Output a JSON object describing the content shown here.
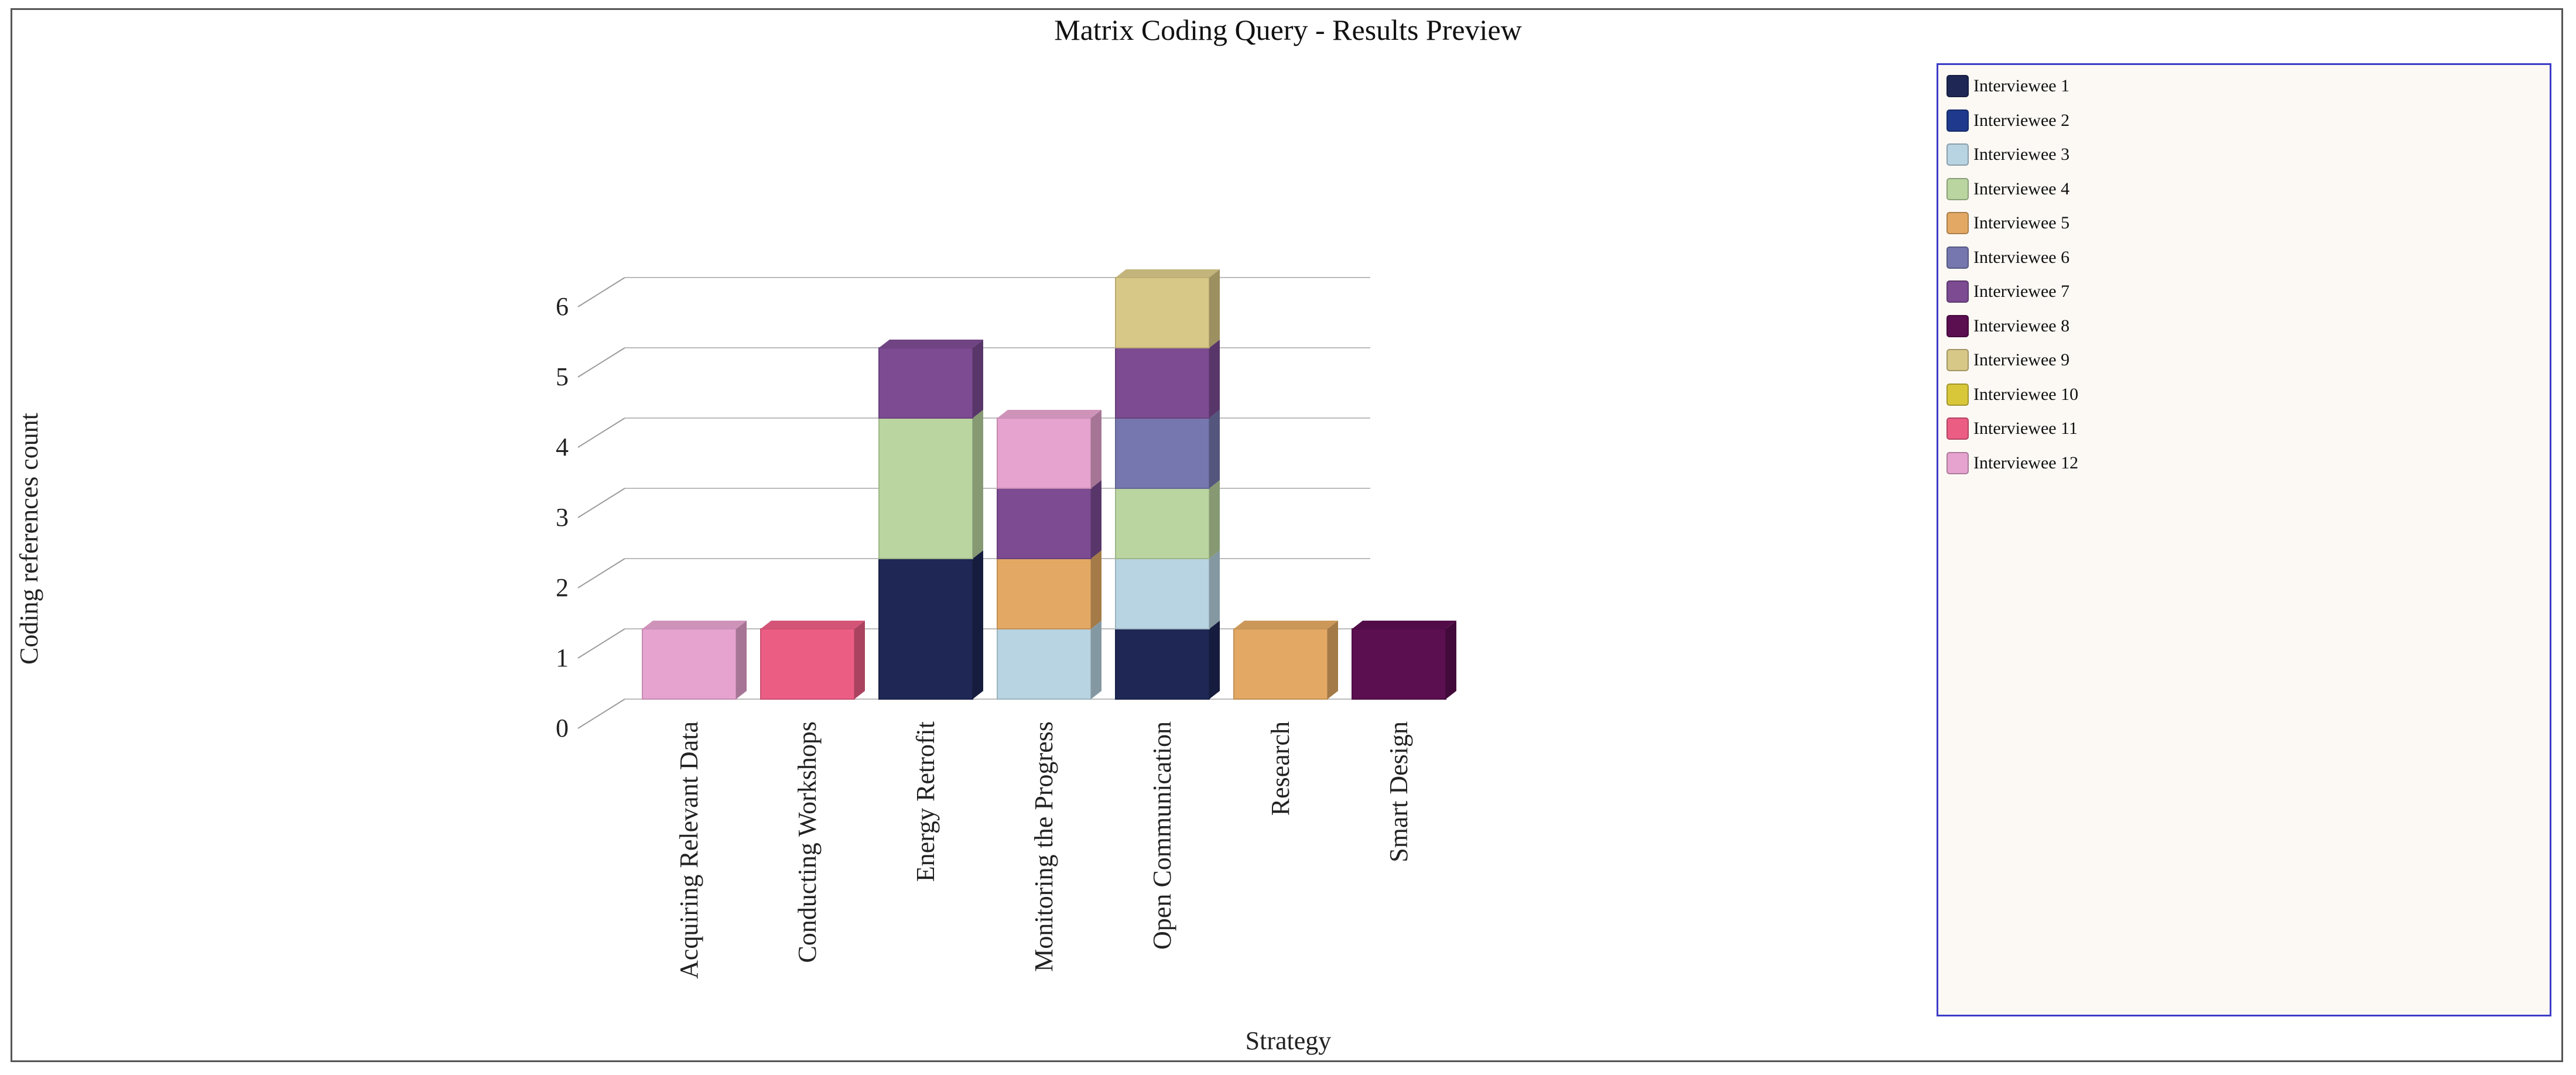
{
  "colors": {
    "Interviewee 1": "#1f2755",
    "Interviewee 2": "#1f3a8c",
    "Interviewee 3": "#b8d3e1",
    "Interviewee 4": "#bad5a0",
    "Interviewee 5": "#e3a964",
    "Interviewee 6": "#7577ae",
    "Interviewee 7": "#7c4b92",
    "Interviewee 8": "#5b0e50",
    "Interviewee 9": "#d8c887",
    "Interviewee 10": "#d9c73a",
    "Interviewee 11": "#ec5d84",
    "Interviewee 12": "#e6a3cf"
  },
  "chart_data": {
    "type": "bar",
    "stacked": true,
    "style": "3d",
    "title": "Matrix Coding Query - Results Preview",
    "xlabel": "Strategy",
    "ylabel": "Coding references count",
    "ylim": [
      0,
      6
    ],
    "yticks": [
      0,
      1,
      2,
      3,
      4,
      5,
      6
    ],
    "grid": true,
    "legend_position": "right",
    "categories": [
      "Acquiring Relevant Data",
      "Conducting Workshops",
      "Energy Retrofit",
      "Monitoring the Progress",
      "Open Communication",
      "Research",
      "Smart Design"
    ],
    "series": [
      {
        "name": "Interviewee 1",
        "values": [
          0,
          0,
          2,
          0,
          1,
          0,
          0
        ]
      },
      {
        "name": "Interviewee 2",
        "values": [
          0,
          0,
          0,
          0,
          0,
          0,
          0
        ]
      },
      {
        "name": "Interviewee 3",
        "values": [
          0,
          0,
          0,
          1,
          1,
          0,
          0
        ]
      },
      {
        "name": "Interviewee 4",
        "values": [
          0,
          0,
          2,
          0,
          1,
          0,
          0
        ]
      },
      {
        "name": "Interviewee 5",
        "values": [
          0,
          0,
          0,
          1,
          0,
          1,
          0
        ]
      },
      {
        "name": "Interviewee 6",
        "values": [
          0,
          0,
          0,
          0,
          1,
          0,
          0
        ]
      },
      {
        "name": "Interviewee 7",
        "values": [
          0,
          0,
          1,
          1,
          1,
          0,
          0
        ]
      },
      {
        "name": "Interviewee 8",
        "values": [
          0,
          0,
          0,
          0,
          0,
          0,
          1
        ]
      },
      {
        "name": "Interviewee 9",
        "values": [
          0,
          0,
          0,
          0,
          1,
          0,
          0
        ]
      },
      {
        "name": "Interviewee 10",
        "values": [
          0,
          0,
          0,
          0,
          0,
          0,
          0
        ]
      },
      {
        "name": "Interviewee 11",
        "values": [
          0,
          1,
          0,
          0,
          0,
          0,
          0
        ]
      },
      {
        "name": "Interviewee 12",
        "values": [
          1,
          0,
          0,
          1,
          0,
          0,
          0
        ]
      }
    ]
  }
}
